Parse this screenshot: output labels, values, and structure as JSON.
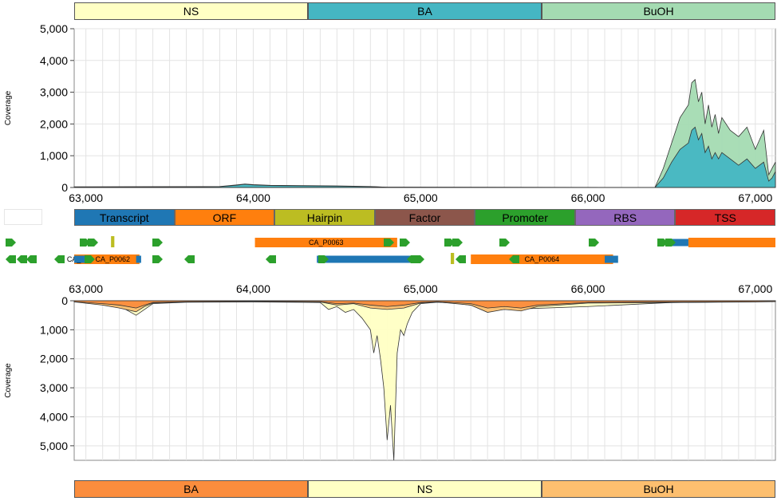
{
  "chart_data": [
    {
      "type": "area",
      "ylabel": "Coverage",
      "xlim": [
        62930,
        67120
      ],
      "ylim": [
        0,
        5000
      ],
      "yticks": [
        0,
        1000,
        2000,
        3000,
        4000,
        5000
      ],
      "ytick_labels": [
        "0",
        "1,000",
        "2,000",
        "3,000",
        "4,000",
        "5,000"
      ],
      "xticks": [
        63000,
        64000,
        65000,
        66000,
        67000
      ],
      "xtick_labels": [
        "63,000",
        "64,000",
        "65,000",
        "66,000",
        "67,000"
      ],
      "legend": [
        {
          "name": "NS",
          "color": "#ffffc4"
        },
        {
          "name": "BA",
          "color": "#45b6c3"
        },
        {
          "name": "BuOH",
          "color": "#a4dbb2"
        }
      ],
      "series": [
        {
          "name": "BuOH",
          "color": "#a4dbb2",
          "x": [
            62930,
            63800,
            63900,
            63950,
            64000,
            64100,
            64300,
            64500,
            64700,
            64800,
            66400,
            66450,
            66500,
            66550,
            66600,
            66620,
            66640,
            66660,
            66680,
            66700,
            66720,
            66740,
            66760,
            66780,
            66800,
            66850,
            66900,
            66950,
            67000,
            67050,
            67080,
            67100,
            67120
          ],
          "y": [
            20,
            30,
            80,
            110,
            90,
            70,
            60,
            50,
            30,
            10,
            0,
            600,
            1400,
            2200,
            2600,
            3300,
            3400,
            2700,
            3000,
            2000,
            2600,
            1900,
            2300,
            1700,
            2200,
            1800,
            1600,
            1900,
            1200,
            1800,
            400,
            600,
            800
          ]
        },
        {
          "name": "BA",
          "color": "#45b6c3",
          "x": [
            62930,
            63800,
            63900,
            63950,
            64000,
            64100,
            64300,
            64500,
            64700,
            64800,
            66400,
            66450,
            66500,
            66550,
            66600,
            66620,
            66640,
            66660,
            66680,
            66700,
            66720,
            66740,
            66760,
            66780,
            66800,
            66850,
            66900,
            66950,
            67000,
            67050,
            67080,
            67100,
            67120
          ],
          "y": [
            15,
            25,
            70,
            100,
            80,
            60,
            50,
            40,
            25,
            8,
            0,
            300,
            800,
            1200,
            1400,
            1800,
            1900,
            1500,
            1700,
            1100,
            1300,
            900,
            1100,
            900,
            1100,
            900,
            700,
            900,
            600,
            800,
            200,
            300,
            500
          ]
        },
        {
          "name": "NS",
          "color": "#ffffc4",
          "x": [
            62930,
            67120
          ],
          "y": [
            0,
            0
          ]
        }
      ]
    },
    {
      "type": "area",
      "ylabel": "Coverage",
      "xlim": [
        62930,
        67120
      ],
      "ylim": [
        0,
        5500
      ],
      "inverted": true,
      "yticks": [
        0,
        1000,
        2000,
        3000,
        4000,
        5000
      ],
      "ytick_labels": [
        "0",
        "1,000",
        "2,000",
        "3,000",
        "4,000",
        "5,000"
      ],
      "xticks": [
        63000,
        64000,
        65000,
        66000,
        67000
      ],
      "xtick_labels": [
        "63,000",
        "64,000",
        "65,000",
        "66,000",
        "67,000"
      ],
      "legend": [
        {
          "name": "BA",
          "color": "#fb8d3d"
        },
        {
          "name": "NS",
          "color": "#ffffc4"
        },
        {
          "name": "BuOH",
          "color": "#fdbf6f"
        }
      ],
      "series": [
        {
          "name": "NS",
          "color": "#ffffc4",
          "x": [
            62930,
            63100,
            63200,
            63300,
            63350,
            63400,
            63600,
            64000,
            64400,
            64450,
            64500,
            64550,
            64600,
            64650,
            64700,
            64720,
            64740,
            64760,
            64780,
            64800,
            64820,
            64840,
            64860,
            64880,
            64900,
            64920,
            64950,
            65000,
            65100,
            65200,
            65500,
            66000,
            66500,
            67000,
            67120
          ],
          "y": [
            30,
            100,
            180,
            500,
            300,
            100,
            50,
            40,
            60,
            300,
            200,
            400,
            300,
            600,
            1000,
            1800,
            1200,
            2000,
            3000,
            4800,
            3600,
            5500,
            1800,
            1000,
            1200,
            800,
            400,
            100,
            50,
            80,
            300,
            200,
            60,
            30,
            20
          ]
        },
        {
          "name": "BuOH",
          "color": "#fdbf6f",
          "x": [
            62930,
            63100,
            63200,
            63300,
            63350,
            63400,
            63600,
            64000,
            64400,
            64500,
            64600,
            64700,
            64800,
            64900,
            65000,
            65100,
            65300,
            65400,
            65500,
            65600,
            65700,
            66000,
            66500,
            67000,
            67120
          ],
          "y": [
            40,
            150,
            250,
            380,
            200,
            80,
            40,
            30,
            40,
            150,
            100,
            250,
            300,
            250,
            80,
            40,
            150,
            400,
            300,
            350,
            200,
            80,
            60,
            40,
            30
          ]
        },
        {
          "name": "BA",
          "color": "#fb8d3d",
          "x": [
            62930,
            63100,
            63200,
            63300,
            63350,
            63400,
            63600,
            64000,
            64400,
            64500,
            64600,
            64700,
            64800,
            64900,
            65000,
            65100,
            65300,
            65400,
            65500,
            65600,
            65700,
            66000,
            66500,
            67000,
            67120
          ],
          "y": [
            30,
            100,
            150,
            250,
            150,
            60,
            30,
            20,
            30,
            100,
            80,
            150,
            200,
            150,
            60,
            30,
            100,
            250,
            200,
            250,
            150,
            60,
            40,
            30,
            20
          ]
        }
      ]
    }
  ],
  "annotation_types": [
    {
      "name": "Transcript",
      "color": "#1f77b4"
    },
    {
      "name": "ORF",
      "color": "#ff7f0e"
    },
    {
      "name": "Hairpin",
      "color": "#bcbd22"
    },
    {
      "name": "Factor",
      "color": "#8c564b"
    },
    {
      "name": "Promoter",
      "color": "#2ca02c"
    },
    {
      "name": "RBS",
      "color": "#9467bd"
    },
    {
      "name": "TSS",
      "color": "#d62728"
    }
  ],
  "features": [
    {
      "type": "ORF",
      "label": "CA_P0061",
      "start": 62930,
      "end": 63050,
      "row": 2
    },
    {
      "type": "Transcript",
      "label": "",
      "start": 62930,
      "end": 63120,
      "row": 2
    },
    {
      "type": "ORF",
      "label": "CA_P0062",
      "start": 63000,
      "end": 63320,
      "row": 2
    },
    {
      "type": "Transcript",
      "label": "",
      "start": 63300,
      "end": 63330,
      "row": 2
    },
    {
      "type": "ORF",
      "label": "CA_P0063",
      "start": 64010,
      "end": 64860,
      "row": 1
    },
    {
      "type": "Transcript",
      "label": "",
      "start": 64380,
      "end": 64950,
      "row": 2
    },
    {
      "type": "ORF",
      "label": "CA_P0064",
      "start": 65300,
      "end": 66150,
      "row": 2
    },
    {
      "type": "Transcript",
      "label": "",
      "start": 66100,
      "end": 66180,
      "row": 2
    },
    {
      "type": "Transcript",
      "label": "",
      "start": 66500,
      "end": 66620,
      "row": 1
    },
    {
      "type": "ORF",
      "label": "",
      "start": 66600,
      "end": 67120,
      "row": 1
    },
    {
      "type": "Hairpin",
      "label": "",
      "start": 63150,
      "end": 63170,
      "row": 1
    },
    {
      "type": "Hairpin",
      "label": "",
      "start": 65180,
      "end": 65200,
      "row": 2
    }
  ]
}
